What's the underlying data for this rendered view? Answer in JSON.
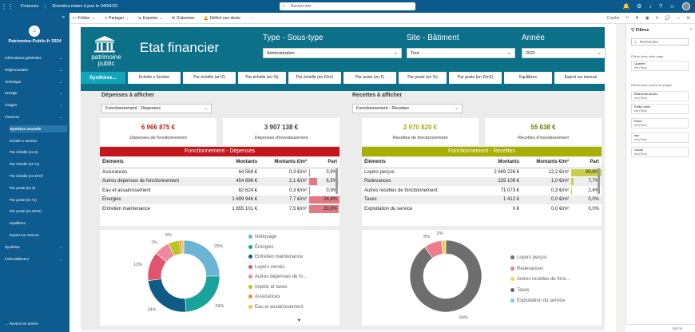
{
  "topbar": {
    "app_name": "Finances",
    "report_name": "Données mises à jour le 04/04/25",
    "search_placeholder": "Rechercher"
  },
  "actionbar": {
    "file": "Fichier",
    "share": "Partager",
    "export": "Exporter",
    "subscribe": "S'abonner",
    "alert": "Définir une alerte",
    "copilot": "Copilot"
  },
  "nav": {
    "site_title": "Patrimoine-Public.fr 2024",
    "items": [
      {
        "label": "Informations générales",
        "sub": false,
        "active": false,
        "chev": true
      },
      {
        "label": "Réglementaire",
        "sub": false,
        "active": false,
        "chev": true
      },
      {
        "label": "Technique",
        "sub": false,
        "active": false,
        "chev": true
      },
      {
        "label": "Energie",
        "sub": false,
        "active": false,
        "chev": true
      },
      {
        "label": "Usages",
        "sub": false,
        "active": false,
        "chev": true
      },
      {
        "label": "Finances",
        "sub": false,
        "active": false,
        "chev": true
      },
      {
        "label": "Synthèse annuelle",
        "sub": true,
        "active": true,
        "chev": false
      },
      {
        "label": "Echelle x Section",
        "sub": true,
        "active": false,
        "chev": false
      },
      {
        "label": "Par échelle (en €)",
        "sub": true,
        "active": false,
        "chev": false
      },
      {
        "label": "Par échelle (en %)",
        "sub": true,
        "active": false,
        "chev": false
      },
      {
        "label": "Par échelle (en €/m²)",
        "sub": true,
        "active": false,
        "chev": false
      },
      {
        "label": "Par poste (en €)",
        "sub": true,
        "active": false,
        "chev": false
      },
      {
        "label": "Par poste (en %)",
        "sub": true,
        "active": false,
        "chev": false
      },
      {
        "label": "Par poste (en €/m2)",
        "sub": true,
        "active": false,
        "chev": false
      },
      {
        "label": "Equilibres",
        "sub": true,
        "active": false,
        "chev": false
      },
      {
        "label": "Export sur mesure",
        "sub": true,
        "active": false,
        "chev": false
      },
      {
        "label": "Synthèse",
        "sub": false,
        "active": false,
        "chev": true
      },
      {
        "label": "Fiche Bâtiment",
        "sub": false,
        "active": false,
        "chev": true
      }
    ],
    "back": "Revenir en arrière"
  },
  "header": {
    "brand": "patrimoine public",
    "title": "Etat financier",
    "slicers": [
      {
        "label": "Type - Sous-type",
        "value": "Administration"
      },
      {
        "label": "Site - Bâtiment",
        "value": "Tout"
      },
      {
        "label": "Année",
        "value": "2021"
      }
    ]
  },
  "tabs": [
    "Synthèse...",
    "Echelle x Section",
    "Par échelle (en €)",
    "Par échelle (en %)",
    "Par échelle (en €/m²)",
    "Par poste (en €)",
    "Par poste (en %)",
    "Par poste (en €/m2)",
    "Equilibres",
    "Export sur mesure"
  ],
  "left": {
    "section_title": "Dépenses à afficher",
    "dropdown": "Fonctionnement - Dépenses",
    "kpis": [
      {
        "value": "6 966 875 €",
        "label": "Dépenses de fonctionnement"
      },
      {
        "value": "3 907 138 €",
        "label": "Dépenses d'investissement"
      }
    ],
    "banner": "Fonctionnement - Dépenses",
    "headers": [
      "Éléments",
      "Montants",
      "Montants €/m²",
      "Part"
    ],
    "rows": [
      {
        "el": "Assurances",
        "m": "64 568 €",
        "mm": "0,3 €/m²",
        "part": "0,9%",
        "pct": 0.9
      },
      {
        "el": "Autres dépenses de fonctionnement",
        "m": "454 896 €",
        "mm": "2,1 €/m²",
        "part": "6,5%",
        "pct": 6.5
      },
      {
        "el": "Eau et assainissement",
        "m": "62 624 €",
        "mm": "0,3 €/m²",
        "part": "0,9%",
        "pct": 0.9
      },
      {
        "el": "Énergies",
        "m": "1 699 946 €",
        "mm": "7,7 €/m²",
        "part": "24,4%",
        "pct": 24.4
      },
      {
        "el": "Entretien maintenance",
        "m": "1 655 101 €",
        "mm": "7,5 €/m²",
        "part": "23,8%",
        "pct": 23.8
      }
    ],
    "legend": [
      "Nettoyage",
      "Énergies",
      "Entretien maintenance",
      "Loyers versés",
      "Autres dépenses de fo...",
      "Impôts et taxes",
      "Assurances",
      "Eau et assainissement"
    ]
  },
  "right": {
    "section_title": "Recettes à afficher",
    "dropdown": "Fonctionnement - Recettes",
    "kpis": [
      {
        "value": "2 970 820 €",
        "label": "Recettes de fonctionnement"
      },
      {
        "value": "55 638 €",
        "label": "Recettes d'investissement"
      }
    ],
    "banner": "Fonctionnement - Recettes",
    "headers": [
      "Éléments",
      "Montants",
      "Montants €/m²",
      "Part"
    ],
    "rows": [
      {
        "el": "Loyers perçus",
        "m": "2 669 226 €",
        "mm": "12,2 €/m²",
        "part": "89,8%",
        "pct": 89.8
      },
      {
        "el": "Redevances",
        "m": "229 109 €",
        "mm": "1,0 €/m²",
        "part": "7,7%",
        "pct": 7.7
      },
      {
        "el": "Autres recettes de fonctionnement",
        "m": "71 073 €",
        "mm": "0,3 €/m²",
        "part": "2,4%",
        "pct": 2.4
      },
      {
        "el": "Taxes",
        "m": "1 412 €",
        "mm": "0,0 €/m²",
        "part": "0,0%",
        "pct": 0
      },
      {
        "el": "Exploitation du service",
        "m": "0 €",
        "mm": "0,0 €/m²",
        "part": "0,0%",
        "pct": 0
      }
    ],
    "legend": [
      "Loyers perçus",
      "Redevances",
      "Autres recettes de fonc...",
      "Taxes",
      "Exploitation du service"
    ]
  },
  "chart_data": [
    {
      "type": "pie",
      "variant": "donut",
      "categories": [
        "Nettoyage",
        "Énergies",
        "Entretien maintenance",
        "Loyers versés",
        "Autres dépenses de fo...",
        "Impôts et taxes",
        "Assurances",
        "Eau et assainissement"
      ],
      "values": [
        25,
        24,
        24,
        13,
        7,
        5,
        1,
        1
      ],
      "labels": [
        "25%",
        "24%",
        "24%",
        "13%",
        "7%",
        "5%",
        "",
        ""
      ],
      "colors": [
        "#6bb4d3",
        "#18a49b",
        "#0f5b86",
        "#e0546d",
        "#ee8aa0",
        "#b7c623",
        "#e88f32",
        "#f2c14e"
      ]
    },
    {
      "type": "pie",
      "variant": "donut",
      "categories": [
        "Loyers perçus",
        "Redevances",
        "Autres recettes de fonc...",
        "Taxes",
        "Exploitation du service"
      ],
      "values": [
        90,
        8,
        2,
        0,
        0
      ],
      "labels": [
        "90%",
        "8%",
        "2%",
        "",
        ""
      ],
      "colors": [
        "#6e6e6e",
        "#ee7b8c",
        "#f2d25a",
        "#666666",
        "#7fc7db"
      ]
    }
  ],
  "filters": {
    "title": "Filtres",
    "search": "Rechercher",
    "on_page": "Filtres dans cette page",
    "on_all": "Filtres dans toutes les pages",
    "cards": [
      {
        "name": "Quartier",
        "state": "est (Tout)"
      },
      {
        "name": "Bâtiments favoris",
        "state": "est (Tout)"
      },
      {
        "name": "Entity name",
        "state": "est (Tout)"
      },
      {
        "name": "fictive",
        "state": "est (Tout)"
      },
      {
        "name": "dep",
        "state": "est (Tout)"
      },
      {
        "name": "vacant",
        "state": "est (Tout)"
      }
    ]
  },
  "zoom": "144 %"
}
